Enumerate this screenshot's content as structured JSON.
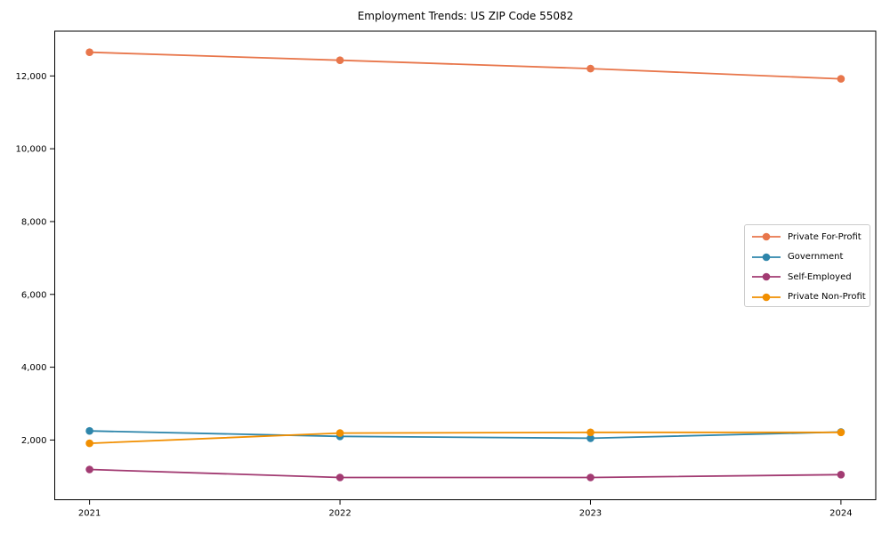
{
  "title": "Employment Trends: US ZIP Code 55082",
  "chart_data": {
    "type": "line",
    "title": "Employment Trends: US ZIP Code 55082",
    "xlabel": "",
    "ylabel": "",
    "x": [
      2021,
      2022,
      2023,
      2024
    ],
    "x_tick_labels": [
      "2021",
      "2022",
      "2023",
      "2024"
    ],
    "series": [
      {
        "name": "Private For-Profit",
        "color": "#E8764B",
        "values": [
          12650,
          12430,
          12200,
          11920
        ]
      },
      {
        "name": "Government",
        "color": "#2E86AB",
        "values": [
          2250,
          2100,
          2050,
          2220
        ]
      },
      {
        "name": "Self-Employed",
        "color": "#A23B72",
        "values": [
          1190,
          970,
          970,
          1050
        ]
      },
      {
        "name": "Private Non-Profit",
        "color": "#F18F01",
        "values": [
          1910,
          2190,
          2210,
          2210
        ]
      }
    ],
    "yticks": [
      {
        "value": 2000,
        "label": "2,000"
      },
      {
        "value": 4000,
        "label": "4,000"
      },
      {
        "value": 6000,
        "label": "6,000"
      },
      {
        "value": 8000,
        "label": "8,000"
      },
      {
        "value": 10000,
        "label": "10,000"
      },
      {
        "value": 12000,
        "label": "12,000"
      }
    ],
    "ylim": [
      360,
      13230
    ],
    "xlim": [
      2020.861,
      2024.139
    ],
    "grid": false,
    "legend_position": "center-right",
    "marker": "circle",
    "background_color": "#ffffff",
    "axis_color": "#000000"
  }
}
